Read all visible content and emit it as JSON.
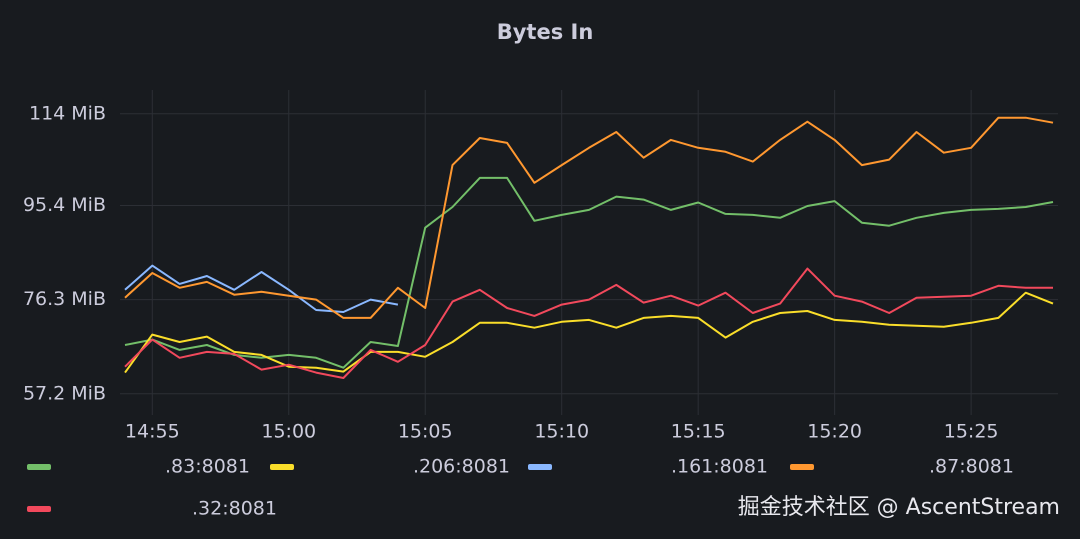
{
  "chart_data": {
    "type": "line",
    "title": "Bytes In",
    "x": [
      "14:54",
      "14:55",
      "14:56",
      "14:57",
      "14:58",
      "14:59",
      "15:00",
      "15:01",
      "15:02",
      "15:03",
      "15:04",
      "15:05",
      "15:06",
      "15:07",
      "15:08",
      "15:09",
      "15:10",
      "15:11",
      "15:12",
      "15:13",
      "15:14",
      "15:15",
      "15:16",
      "15:17",
      "15:18",
      "15:19",
      "15:20",
      "15:21",
      "15:22",
      "15:23",
      "15:24",
      "15:25",
      "15:26",
      "15:27",
      "15:28"
    ],
    "xlim": [
      "14:54",
      "15:28"
    ],
    "xticks": [
      "14:55",
      "15:00",
      "15:05",
      "15:10",
      "15:15",
      "15:20",
      "15:25"
    ],
    "ylim": [
      52.9,
      116.8
    ],
    "yticks": [
      {
        "value": 57.2,
        "label": "57.2 MiB"
      },
      {
        "value": 76.3,
        "label": "76.3 MiB"
      },
      {
        "value": 95.4,
        "label": "95.4 MiB"
      },
      {
        "value": 114,
        "label": "114 MiB"
      }
    ],
    "grid": true,
    "legend": "bottom",
    "series": [
      {
        "name": ".83:8081",
        "color": "#73bf69",
        "values": [
          67.1,
          68.2,
          66.1,
          67.1,
          65.1,
          64.5,
          65.1,
          64.5,
          62.5,
          67.7,
          66.9,
          90.9,
          95.1,
          101,
          101,
          92.3,
          93.5,
          94.5,
          97.2,
          96.6,
          94.5,
          96,
          93.7,
          93.5,
          92.9,
          95.3,
          96.3,
          91.9,
          91.3,
          92.9,
          93.9,
          94.5,
          94.7,
          95.1,
          96.1
        ]
      },
      {
        "name": ".206:8081",
        "color": "#fade2a",
        "values": [
          61.5,
          69.2,
          67.7,
          68.8,
          65.7,
          65.1,
          62.7,
          62.5,
          61.7,
          65.7,
          65.7,
          64.7,
          67.7,
          71.6,
          71.6,
          70.6,
          71.8,
          72.2,
          70.6,
          72.6,
          73.0,
          72.6,
          68.6,
          71.8,
          73.6,
          74.0,
          72.2,
          71.8,
          71.2,
          71.0,
          70.8,
          71.6,
          72.6,
          77.7,
          75.5
        ]
      },
      {
        "name": ".161:8081",
        "color": "#8ab8ff",
        "values": [
          78.3,
          83.2,
          79.5,
          81.1,
          78.3,
          81.9,
          78.3,
          74.2,
          73.8,
          76.3,
          75.3,
          null,
          null,
          null,
          null,
          null,
          null,
          null,
          null,
          null,
          null,
          null,
          null,
          null,
          null,
          null,
          null,
          null,
          null,
          null,
          null,
          null,
          null,
          null,
          null
        ]
      },
      {
        "name": ".87:8081",
        "color": "#ff9830",
        "values": [
          76.7,
          81.7,
          78.7,
          79.9,
          77.3,
          77.9,
          77.1,
          76.3,
          72.6,
          72.6,
          78.7,
          74.6,
          103.6,
          109.1,
          108.1,
          100.0,
          103.6,
          107.1,
          110.3,
          105.1,
          108.7,
          107.1,
          106.3,
          104.3,
          108.7,
          112.4,
          108.7,
          103.6,
          104.7,
          110.3,
          106.1,
          107.1,
          113.2,
          113.2,
          112.2
        ]
      },
      {
        "name": ".32:8081",
        "color": "#f2495c",
        "values": [
          62.7,
          68.2,
          64.5,
          65.7,
          65.3,
          62.1,
          63.1,
          61.5,
          60.4,
          66.1,
          63.7,
          67.1,
          75.9,
          78.3,
          74.6,
          73.0,
          75.3,
          76.3,
          79.3,
          75.7,
          77.1,
          75.1,
          77.7,
          73.6,
          75.5,
          82.6,
          77.1,
          75.9,
          73.6,
          76.7,
          76.9,
          77.1,
          79.1,
          78.7,
          78.7
        ]
      }
    ],
    "annotation": "掘金技术社区 @ AscentStream"
  }
}
